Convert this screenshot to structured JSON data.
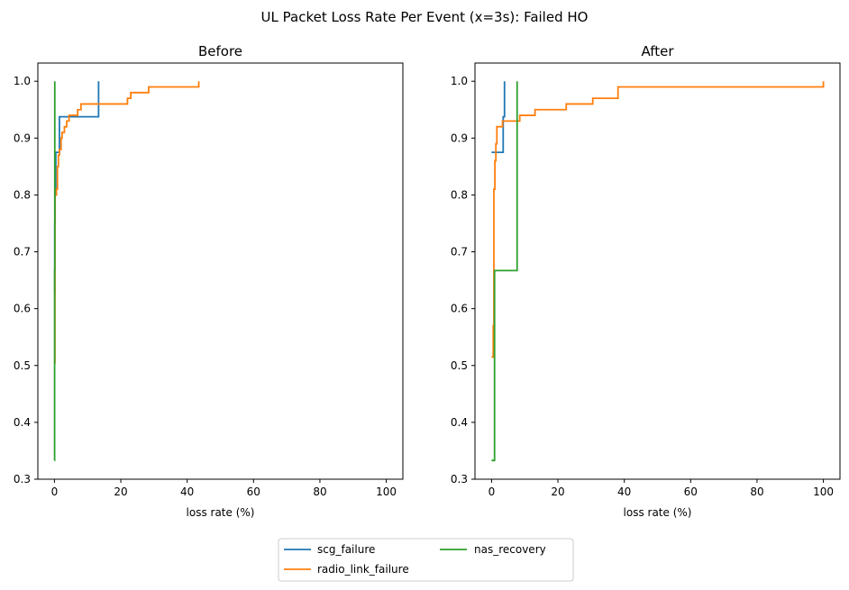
{
  "figure": {
    "suptitle": "UL Packet Loss Rate Per Event (x=3s): Failed HO"
  },
  "chart_data": [
    {
      "type": "line",
      "step": true,
      "title": "Before",
      "xlabel": "loss rate (%)",
      "ylabel": "",
      "xlim": [
        -5,
        105
      ],
      "ylim": [
        0.3,
        1.032
      ],
      "xticks": [
        0,
        20,
        40,
        60,
        80,
        100
      ],
      "yticks": [
        0.3,
        0.4,
        0.5,
        0.6,
        0.7,
        0.8,
        0.9,
        1.0
      ],
      "xtick_labels": [
        "0",
        "20",
        "40",
        "60",
        "80",
        "100"
      ],
      "ytick_labels": [
        "0.3",
        "0.4",
        "0.5",
        "0.6",
        "0.7",
        "0.8",
        "0.9",
        "1.0"
      ],
      "series": [
        {
          "name": "scg_failure",
          "color": "#1f77b4",
          "points": [
            [
              0,
              0.625
            ],
            [
              0.1,
              0.75
            ],
            [
              0.2,
              0.8125
            ],
            [
              0.4,
              0.875
            ],
            [
              1.4,
              0.875
            ],
            [
              1.5,
              0.9375
            ],
            [
              13.2,
              0.9375
            ],
            [
              13.3,
              1.0
            ]
          ]
        },
        {
          "name": "radio_link_failure",
          "color": "#ff7f0e",
          "points": [
            [
              0,
              0.505
            ],
            [
              0.15,
              0.8
            ],
            [
              0.6,
              0.81
            ],
            [
              0.9,
              0.85
            ],
            [
              1.2,
              0.87
            ],
            [
              1.5,
              0.88
            ],
            [
              2.0,
              0.9
            ],
            [
              2.3,
              0.91
            ],
            [
              3.0,
              0.92
            ],
            [
              3.7,
              0.93
            ],
            [
              4.4,
              0.94
            ],
            [
              6.4,
              0.94
            ],
            [
              7.0,
              0.95
            ],
            [
              8.0,
              0.96
            ],
            [
              21.8,
              0.96
            ],
            [
              22.0,
              0.97
            ],
            [
              23.0,
              0.98
            ],
            [
              28.2,
              0.98
            ],
            [
              28.4,
              0.99
            ],
            [
              43.4,
              0.99
            ],
            [
              43.5,
              1.0
            ]
          ]
        },
        {
          "name": "nas_recovery",
          "color": "#2ca02c",
          "points": [
            [
              0,
              0.333
            ],
            [
              0.05,
              0.667
            ],
            [
              0.1,
              1.0
            ]
          ]
        }
      ]
    },
    {
      "type": "line",
      "step": true,
      "title": "After",
      "xlabel": "loss rate (%)",
      "ylabel": "",
      "xlim": [
        -5,
        105
      ],
      "ylim": [
        0.3,
        1.032
      ],
      "xticks": [
        0,
        20,
        40,
        60,
        80,
        100
      ],
      "yticks": [
        0.3,
        0.4,
        0.5,
        0.6,
        0.7,
        0.8,
        0.9,
        1.0
      ],
      "xtick_labels": [
        "0",
        "20",
        "40",
        "60",
        "80",
        "100"
      ],
      "ytick_labels": [
        "0.3",
        "0.4",
        "0.5",
        "0.6",
        "0.7",
        "0.8",
        "0.9",
        "1.0"
      ],
      "series": [
        {
          "name": "scg_failure",
          "color": "#1f77b4",
          "points": [
            [
              0,
              0.875
            ],
            [
              3.4,
              0.875
            ],
            [
              3.5,
              0.9375
            ],
            [
              3.9,
              1.0
            ]
          ]
        },
        {
          "name": "radio_link_failure",
          "color": "#ff7f0e",
          "points": [
            [
              0,
              0.515
            ],
            [
              0.5,
              0.57
            ],
            [
              0.7,
              0.81
            ],
            [
              1.0,
              0.86
            ],
            [
              1.3,
              0.89
            ],
            [
              1.6,
              0.92
            ],
            [
              3.0,
              0.92
            ],
            [
              3.3,
              0.93
            ],
            [
              4.3,
              0.93
            ],
            [
              4.6,
              0.93
            ],
            [
              8.3,
              0.93
            ],
            [
              8.5,
              0.94
            ],
            [
              12.9,
              0.94
            ],
            [
              13.1,
              0.95
            ],
            [
              22.3,
              0.95
            ],
            [
              22.5,
              0.96
            ],
            [
              30.3,
              0.96
            ],
            [
              30.5,
              0.97
            ],
            [
              37.9,
              0.97
            ],
            [
              38.1,
              0.99
            ],
            [
              99.9,
              0.99
            ],
            [
              100.0,
              1.0
            ]
          ]
        },
        {
          "name": "nas_recovery",
          "color": "#2ca02c",
          "points": [
            [
              0,
              0.333
            ],
            [
              0.8,
              0.333
            ],
            [
              0.9,
              0.667
            ],
            [
              7.6,
              0.667
            ],
            [
              7.7,
              1.0
            ]
          ]
        }
      ]
    }
  ],
  "legend": {
    "placement": "bottom-center",
    "columns": 2,
    "entries": [
      {
        "label": "scg_failure",
        "color": "#1f77b4"
      },
      {
        "label": "radio_link_failure",
        "color": "#ff7f0e"
      },
      {
        "label": "nas_recovery",
        "color": "#2ca02c"
      }
    ]
  }
}
